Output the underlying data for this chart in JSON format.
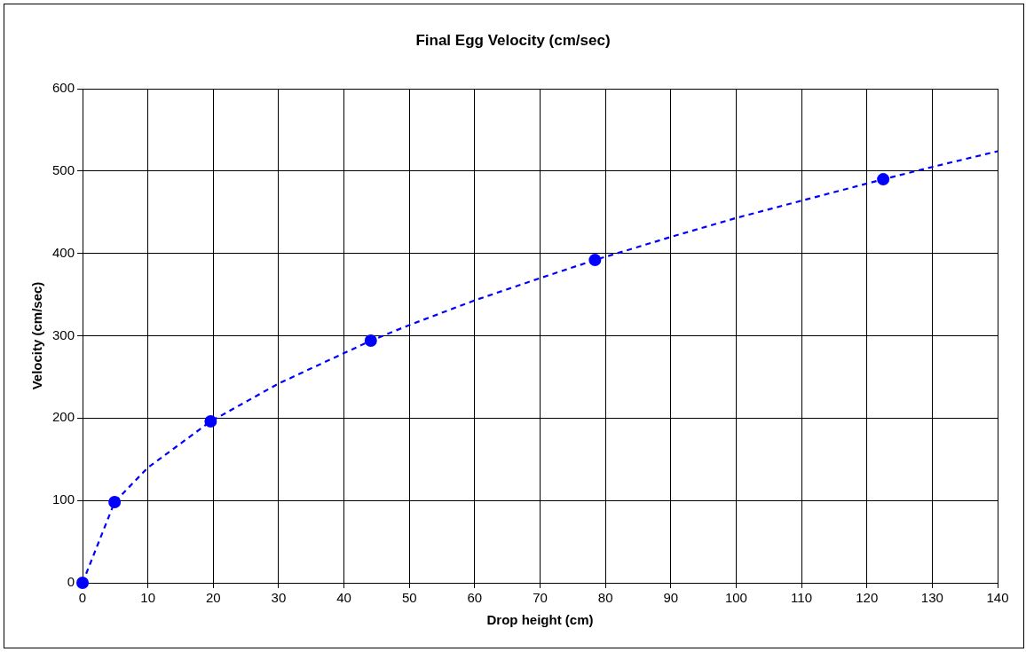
{
  "chart_data": {
    "type": "scatter",
    "title": "Final Egg Velocity (cm/sec)",
    "xlabel": "Drop height (cm)",
    "ylabel": "Velocity (cm/sec)",
    "xlim": [
      0,
      140
    ],
    "xticks": [
      0,
      10,
      20,
      30,
      40,
      50,
      60,
      70,
      80,
      90,
      100,
      110,
      120,
      130,
      140
    ],
    "ylim": [
      0,
      600
    ],
    "yticks": [
      0,
      100,
      200,
      300,
      400,
      500,
      600
    ],
    "grid": true,
    "legend": false,
    "series": [
      {
        "type": "scatter",
        "color": "#0000ff",
        "marker": "circle",
        "x": [
          0,
          4.9,
          19.6,
          44.1,
          78.4,
          122.5
        ],
        "values": [
          0,
          98,
          196,
          294,
          392,
          490
        ]
      },
      {
        "type": "line",
        "color": "#0000ff",
        "marker": "none",
        "line_style": "dashed",
        "x": [
          0,
          4.9,
          10,
          19.6,
          30,
          44.1,
          50,
          60,
          70,
          78.4,
          90,
          100,
          110,
          122.5,
          130,
          140
        ],
        "values": [
          0,
          98,
          140,
          196,
          242,
          294,
          313,
          343,
          370,
          392,
          420,
          443,
          464,
          490,
          505,
          524
        ]
      }
    ]
  }
}
